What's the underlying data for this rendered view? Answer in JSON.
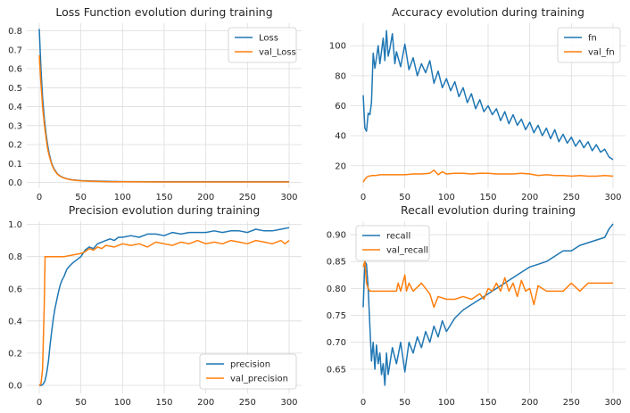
{
  "colors": {
    "train": "#1f77b4",
    "val": "#ff7f0e",
    "grid": "#dcdcdc",
    "face": "#ffffff"
  },
  "chart_data": [
    {
      "type": "line",
      "title": "Loss Function evolution during training",
      "xlim": [
        -15,
        315
      ],
      "ylim": [
        -0.03,
        0.84
      ],
      "xticks": [
        0,
        50,
        100,
        150,
        200,
        250,
        300
      ],
      "xtick_labels": [
        "0",
        "50",
        "100",
        "150",
        "200",
        "250",
        "300"
      ],
      "yticks": [
        0,
        0.1,
        0.2,
        0.3,
        0.4,
        0.5,
        0.6,
        0.7,
        0.8
      ],
      "ytick_labels": [
        "0.0",
        "0.1",
        "0.2",
        "0.3",
        "0.4",
        "0.5",
        "0.6",
        "0.7",
        "0.8"
      ],
      "legend_loc": "upper-right",
      "series": [
        {
          "name": "Loss",
          "x": [
            0,
            2,
            4,
            6,
            8,
            10,
            12,
            15,
            18,
            22,
            26,
            30,
            35,
            40,
            50,
            60,
            80,
            100,
            150,
            200,
            250,
            300
          ],
          "y": [
            0.81,
            0.6,
            0.45,
            0.34,
            0.26,
            0.2,
            0.15,
            0.1,
            0.07,
            0.045,
            0.032,
            0.024,
            0.018,
            0.014,
            0.01,
            0.008,
            0.006,
            0.005,
            0.004,
            0.004,
            0.004,
            0.004
          ]
        },
        {
          "name": "val_Loss",
          "x": [
            0,
            2,
            4,
            6,
            8,
            10,
            12,
            15,
            18,
            22,
            26,
            30,
            35,
            40,
            50,
            60,
            80,
            100,
            150,
            200,
            250,
            300
          ],
          "y": [
            0.67,
            0.52,
            0.4,
            0.31,
            0.24,
            0.18,
            0.14,
            0.095,
            0.066,
            0.043,
            0.03,
            0.023,
            0.017,
            0.013,
            0.009,
            0.007,
            0.005,
            0.004,
            0.003,
            0.003,
            0.003,
            0.003
          ]
        }
      ]
    },
    {
      "type": "line",
      "title": "Accuracy evolution during training",
      "xlim": [
        -15,
        315
      ],
      "ylim": [
        5,
        115
      ],
      "xticks": [
        0,
        50,
        100,
        150,
        200,
        250,
        300
      ],
      "xtick_labels": [
        "0",
        "50",
        "100",
        "150",
        "200",
        "250",
        "300"
      ],
      "yticks": [
        20,
        40,
        60,
        80,
        100
      ],
      "ytick_labels": [
        "20",
        "40",
        "60",
        "80",
        "100"
      ],
      "legend_loc": "upper-right",
      "series": [
        {
          "name": "fn",
          "x": [
            0,
            2,
            4,
            6,
            8,
            10,
            12,
            14,
            16,
            18,
            20,
            22,
            24,
            26,
            28,
            30,
            32,
            35,
            38,
            40,
            45,
            50,
            55,
            60,
            65,
            70,
            75,
            80,
            85,
            90,
            95,
            100,
            105,
            110,
            115,
            120,
            125,
            130,
            135,
            140,
            145,
            150,
            155,
            160,
            165,
            170,
            175,
            180,
            185,
            190,
            195,
            200,
            205,
            210,
            215,
            220,
            225,
            230,
            235,
            240,
            245,
            250,
            255,
            260,
            265,
            270,
            275,
            280,
            285,
            290,
            295,
            300
          ],
          "y": [
            67,
            45,
            43,
            55,
            54,
            62,
            95,
            85,
            92,
            100,
            88,
            96,
            105,
            90,
            110,
            93,
            98,
            108,
            88,
            96,
            86,
            101,
            84,
            92,
            80,
            88,
            82,
            90,
            75,
            83,
            72,
            78,
            70,
            76,
            66,
            72,
            62,
            68,
            58,
            64,
            56,
            60,
            54,
            58,
            50,
            56,
            48,
            54,
            47,
            51,
            44,
            49,
            42,
            47,
            40,
            45,
            38,
            44,
            36,
            41,
            35,
            39,
            33,
            37,
            32,
            36,
            30,
            34,
            29,
            31,
            26,
            24
          ]
        },
        {
          "name": "val_fn",
          "x": [
            0,
            2,
            4,
            6,
            8,
            10,
            15,
            20,
            30,
            40,
            50,
            60,
            70,
            80,
            85,
            90,
            95,
            100,
            110,
            120,
            130,
            140,
            150,
            160,
            170,
            180,
            190,
            200,
            210,
            220,
            230,
            240,
            250,
            260,
            270,
            280,
            290,
            300
          ],
          "y": [
            9,
            11,
            12,
            13,
            13,
            13.5,
            13.5,
            14,
            14,
            14,
            14,
            14.5,
            14.5,
            15,
            17,
            14,
            16,
            14.5,
            15,
            15,
            14.5,
            15,
            15,
            14.5,
            14.5,
            14.5,
            15,
            14.5,
            13.5,
            14,
            13.5,
            13.5,
            13,
            13.5,
            13,
            13,
            13.5,
            13
          ]
        }
      ]
    },
    {
      "type": "line",
      "title": "Precision evolution during training",
      "xlim": [
        -15,
        315
      ],
      "ylim": [
        -0.05,
        1.02
      ],
      "xticks": [
        0,
        50,
        100,
        150,
        200,
        250,
        300
      ],
      "xtick_labels": [
        "0",
        "50",
        "100",
        "150",
        "200",
        "250",
        "300"
      ],
      "yticks": [
        0,
        0.2,
        0.4,
        0.6,
        0.8,
        1.0
      ],
      "ytick_labels": [
        "0.0",
        "0.2",
        "0.4",
        "0.6",
        "0.8",
        "1.0"
      ],
      "legend_loc": "lower-right",
      "series": [
        {
          "name": "precision",
          "x": [
            0,
            3,
            5,
            7,
            9,
            11,
            13,
            15,
            17,
            19,
            21,
            23,
            25,
            27,
            30,
            33,
            36,
            40,
            45,
            50,
            55,
            60,
            65,
            70,
            75,
            80,
            85,
            90,
            95,
            100,
            110,
            120,
            130,
            140,
            150,
            160,
            170,
            180,
            190,
            200,
            210,
            220,
            230,
            240,
            250,
            260,
            270,
            280,
            290,
            300
          ],
          "y": [
            0,
            0,
            0.01,
            0.03,
            0.08,
            0.15,
            0.25,
            0.34,
            0.42,
            0.48,
            0.53,
            0.58,
            0.62,
            0.65,
            0.68,
            0.72,
            0.74,
            0.76,
            0.78,
            0.8,
            0.84,
            0.86,
            0.85,
            0.88,
            0.89,
            0.9,
            0.91,
            0.9,
            0.92,
            0.92,
            0.93,
            0.92,
            0.94,
            0.94,
            0.93,
            0.95,
            0.94,
            0.95,
            0.95,
            0.95,
            0.96,
            0.95,
            0.96,
            0.96,
            0.95,
            0.97,
            0.96,
            0.96,
            0.97,
            0.98
          ]
        },
        {
          "name": "val_precision",
          "x": [
            0,
            2,
            4,
            6,
            7,
            8,
            10,
            15,
            20,
            30,
            40,
            50,
            55,
            60,
            65,
            70,
            75,
            80,
            90,
            100,
            110,
            120,
            130,
            140,
            150,
            160,
            170,
            180,
            190,
            200,
            210,
            220,
            230,
            240,
            250,
            260,
            270,
            280,
            290,
            295,
            300
          ],
          "y": [
            0,
            0.01,
            0.1,
            0.5,
            0.8,
            0.8,
            0.8,
            0.8,
            0.8,
            0.8,
            0.81,
            0.82,
            0.83,
            0.85,
            0.84,
            0.86,
            0.85,
            0.87,
            0.86,
            0.88,
            0.87,
            0.88,
            0.86,
            0.89,
            0.88,
            0.87,
            0.89,
            0.88,
            0.9,
            0.88,
            0.89,
            0.88,
            0.9,
            0.89,
            0.88,
            0.9,
            0.89,
            0.88,
            0.9,
            0.88,
            0.9
          ]
        }
      ]
    },
    {
      "type": "line",
      "title": "Recall evolution during training",
      "xlim": [
        -15,
        315
      ],
      "ylim": [
        0.605,
        0.925
      ],
      "xticks": [
        0,
        50,
        100,
        150,
        200,
        250,
        300
      ],
      "xtick_labels": [
        "0",
        "50",
        "100",
        "150",
        "200",
        "250",
        "300"
      ],
      "yticks": [
        0.65,
        0.7,
        0.75,
        0.8,
        0.85,
        0.9
      ],
      "ytick_labels": [
        "0.65",
        "0.70",
        "0.75",
        "0.80",
        "0.85",
        "0.90"
      ],
      "legend_loc": "upper-left",
      "series": [
        {
          "name": "recall",
          "x": [
            0,
            2,
            4,
            6,
            8,
            10,
            12,
            14,
            16,
            18,
            20,
            22,
            24,
            26,
            28,
            30,
            35,
            40,
            45,
            50,
            55,
            60,
            65,
            70,
            75,
            80,
            85,
            90,
            95,
            100,
            110,
            120,
            130,
            140,
            150,
            160,
            170,
            180,
            190,
            200,
            210,
            220,
            230,
            240,
            250,
            260,
            270,
            280,
            290,
            295,
            300
          ],
          "y": [
            0.765,
            0.85,
            0.845,
            0.8,
            0.73,
            0.665,
            0.7,
            0.65,
            0.695,
            0.66,
            0.68,
            0.64,
            0.66,
            0.62,
            0.68,
            0.64,
            0.69,
            0.66,
            0.7,
            0.645,
            0.7,
            0.68,
            0.71,
            0.69,
            0.72,
            0.7,
            0.73,
            0.71,
            0.74,
            0.72,
            0.745,
            0.76,
            0.77,
            0.78,
            0.79,
            0.8,
            0.81,
            0.82,
            0.83,
            0.84,
            0.845,
            0.85,
            0.86,
            0.87,
            0.87,
            0.88,
            0.885,
            0.89,
            0.895,
            0.91,
            0.92
          ]
        },
        {
          "name": "val_recall",
          "x": [
            0,
            2,
            4,
            6,
            8,
            10,
            20,
            30,
            40,
            42,
            45,
            50,
            52,
            55,
            60,
            70,
            80,
            85,
            90,
            100,
            110,
            120,
            130,
            140,
            145,
            150,
            155,
            160,
            165,
            170,
            175,
            180,
            185,
            190,
            195,
            200,
            205,
            210,
            220,
            230,
            240,
            250,
            260,
            270,
            280,
            290,
            300
          ],
          "y": [
            0.84,
            0.85,
            0.81,
            0.8,
            0.795,
            0.795,
            0.795,
            0.795,
            0.795,
            0.81,
            0.795,
            0.825,
            0.795,
            0.81,
            0.795,
            0.81,
            0.79,
            0.765,
            0.785,
            0.78,
            0.78,
            0.785,
            0.78,
            0.79,
            0.78,
            0.8,
            0.795,
            0.81,
            0.795,
            0.82,
            0.795,
            0.81,
            0.785,
            0.815,
            0.795,
            0.8,
            0.77,
            0.805,
            0.795,
            0.795,
            0.795,
            0.81,
            0.795,
            0.81,
            0.81,
            0.81,
            0.81
          ]
        }
      ]
    }
  ]
}
